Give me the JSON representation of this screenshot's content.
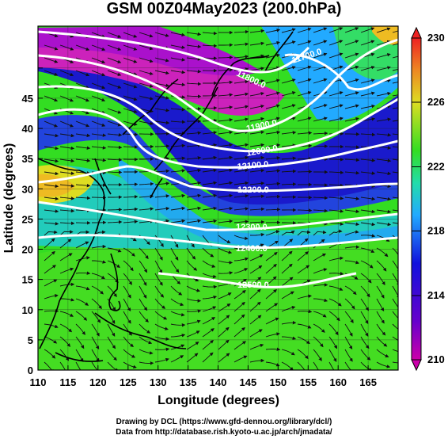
{
  "title": "GSM 00Z04May2023 (200.0hPa)",
  "xlabel": "Longitude (degrees)",
  "ylabel": "Latitude  (degrees)",
  "x_ticks": [
    "110",
    "115",
    "120",
    "125",
    "130",
    "135",
    "140",
    "145",
    "150",
    "155",
    "160",
    "165"
  ],
  "y_ticks": [
    "0",
    "5",
    "10",
    "15",
    "20",
    "25",
    "30",
    "35",
    "40",
    "45"
  ],
  "colorbar_ticks": [
    "230",
    "226",
    "222",
    "218",
    "214",
    "210"
  ],
  "contour_labels": [
    "11700.0",
    "11800.0",
    "11900.0",
    "12000.0",
    "12100.0",
    "12200.0",
    "12300.0",
    "12400.0",
    "12500.0"
  ],
  "credits": {
    "line1": "Drawing by DCL (https://www.gfd-dennou.org/library/dcl/)",
    "line2": "Data from http://database.rish.kyoto-u.ac.jp/arch/jmadata/"
  },
  "colors": {
    "magenta": "#cc22bb",
    "blue": "#1a1acc",
    "cyan": "#22aaff",
    "green": "#33dd22",
    "yellow": "#dddd22",
    "orange": "#ee7722",
    "red": "#ee2222"
  }
}
